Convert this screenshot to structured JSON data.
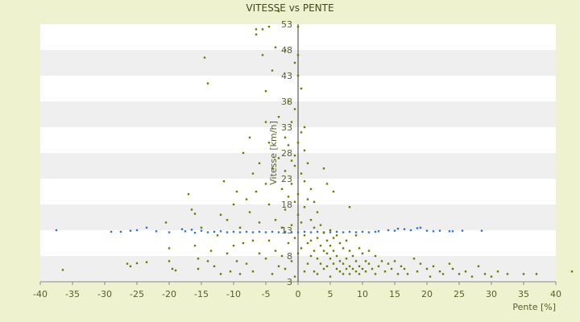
{
  "chart_data": {
    "type": "scatter",
    "title": "VITESSE vs PENTE",
    "xlabel": "Pente [%]",
    "ylabel": "Vitesse [km/h]",
    "xlim": [
      -40,
      40
    ],
    "ylim": [
      3,
      53
    ],
    "x_ticks": [
      "-40",
      "-35",
      "-30",
      "-25",
      "-20",
      "-15",
      "-10",
      "-5",
      "0",
      "5",
      "10",
      "15",
      "20",
      "25",
      "30",
      "35",
      "40"
    ],
    "y_ticks": [
      "3",
      "8",
      "13",
      "18",
      "23",
      "28",
      "33",
      "38",
      "43",
      "48",
      "53"
    ],
    "legend": "none",
    "grid": "horizontal bands",
    "colors": {
      "measured": "#6b7a00",
      "mean": "#2e75d6"
    },
    "series": [
      {
        "values": [
          [
            -37.5,
            13.0
          ],
          [
            -29.0,
            12.7
          ],
          [
            -27.5,
            12.7
          ],
          [
            -26.0,
            12.9
          ],
          [
            -25.0,
            13.0
          ],
          [
            -23.5,
            13.5
          ],
          [
            -22.0,
            12.8
          ],
          [
            -20.0,
            12.6
          ],
          [
            -18.0,
            13.2
          ],
          [
            -17.5,
            12.8
          ],
          [
            -16.5,
            13.1
          ],
          [
            -16.0,
            12.5
          ],
          [
            -15.0,
            12.9
          ],
          [
            -14.0,
            12.6
          ],
          [
            -13.0,
            12.7
          ],
          [
            -12.0,
            12.8
          ],
          [
            -11.0,
            12.6
          ],
          [
            -10.0,
            12.7
          ],
          [
            -9.0,
            12.6
          ],
          [
            -8.0,
            12.7
          ],
          [
            -7.0,
            12.6
          ],
          [
            -6.0,
            12.7
          ],
          [
            -5.0,
            12.6
          ],
          [
            -4.0,
            12.7
          ],
          [
            -3.0,
            12.6
          ],
          [
            -2.0,
            12.7
          ],
          [
            -1.0,
            12.6
          ],
          [
            0.0,
            12.6
          ],
          [
            1.0,
            12.7
          ],
          [
            2.0,
            12.6
          ],
          [
            3.0,
            12.7
          ],
          [
            4.0,
            12.6
          ],
          [
            5.0,
            12.6
          ],
          [
            6.0,
            12.7
          ],
          [
            7.0,
            12.6
          ],
          [
            8.0,
            12.7
          ],
          [
            9.0,
            12.6
          ],
          [
            10.0,
            12.7
          ],
          [
            11.0,
            12.6
          ],
          [
            12.0,
            12.7
          ],
          [
            12.5,
            12.8
          ],
          [
            14.0,
            13.0
          ],
          [
            15.0,
            12.9
          ],
          [
            15.5,
            13.3
          ],
          [
            16.5,
            13.2
          ],
          [
            17.5,
            13.0
          ],
          [
            18.5,
            13.4
          ],
          [
            19.0,
            13.5
          ],
          [
            20.0,
            12.9
          ],
          [
            21.0,
            12.8
          ],
          [
            22.0,
            12.9
          ],
          [
            23.5,
            12.8
          ],
          [
            24.0,
            12.8
          ],
          [
            25.5,
            12.9
          ],
          [
            28.5,
            12.9
          ]
        ]
      },
      {
        "values": [
          [
            -36.5,
            5.3
          ],
          [
            -26.5,
            6.5
          ],
          [
            -26.0,
            6.0
          ],
          [
            -25.0,
            6.6
          ],
          [
            -23.5,
            6.8
          ],
          [
            -20.5,
            14.5
          ],
          [
            -20.0,
            9.5
          ],
          [
            -20.0,
            7.0
          ],
          [
            -19.5,
            5.5
          ],
          [
            -19.0,
            5.2
          ],
          [
            -17.0,
            20.0
          ],
          [
            -16.5,
            17.0
          ],
          [
            -16.0,
            16.2
          ],
          [
            -16.0,
            10.0
          ],
          [
            -15.5,
            7.5
          ],
          [
            -15.5,
            5.5
          ],
          [
            -15.0,
            13.5
          ],
          [
            -14.5,
            46.5
          ],
          [
            -14.0,
            41.5
          ],
          [
            -14.0,
            7.0
          ],
          [
            -13.5,
            9.0
          ],
          [
            -13.0,
            6.0
          ],
          [
            -12.5,
            12.0
          ],
          [
            -12.0,
            4.5
          ],
          [
            -12.0,
            16.0
          ],
          [
            -11.5,
            22.5
          ],
          [
            -11.0,
            15.0
          ],
          [
            -11.0,
            8.5
          ],
          [
            -10.5,
            5.0
          ],
          [
            -10.0,
            10.0
          ],
          [
            -10.0,
            18.0
          ],
          [
            -9.5,
            20.5
          ],
          [
            -9.5,
            7.0
          ],
          [
            -9.0,
            13.5
          ],
          [
            -9.0,
            4.5
          ],
          [
            -8.5,
            28.0
          ],
          [
            -8.5,
            10.5
          ],
          [
            -8.0,
            19.0
          ],
          [
            -8.0,
            6.5
          ],
          [
            -7.5,
            16.5
          ],
          [
            -7.5,
            31.0
          ],
          [
            -7.0,
            24.0
          ],
          [
            -7.0,
            11.0
          ],
          [
            -7.0,
            5.0
          ],
          [
            -6.5,
            51.0
          ],
          [
            -6.5,
            52.0
          ],
          [
            -6.5,
            20.5
          ],
          [
            -6.0,
            8.5
          ],
          [
            -6.0,
            14.5
          ],
          [
            -6.0,
            26.0
          ],
          [
            -5.5,
            52.0
          ],
          [
            -5.5,
            47.0
          ],
          [
            -5.0,
            40.0
          ],
          [
            -5.0,
            34.0
          ],
          [
            -5.0,
            22.0
          ],
          [
            -5.0,
            7.5
          ],
          [
            -4.5,
            52.5
          ],
          [
            -4.5,
            30.0
          ],
          [
            -4.5,
            18.0
          ],
          [
            -4.5,
            11.0
          ],
          [
            -4.0,
            44.0
          ],
          [
            -4.0,
            4.5
          ],
          [
            -4.0,
            25.0
          ],
          [
            -3.5,
            48.5
          ],
          [
            -3.5,
            15.0
          ],
          [
            -3.5,
            9.0
          ],
          [
            -3.0,
            55.5
          ],
          [
            -3.0,
            35.0
          ],
          [
            -3.0,
            27.0
          ],
          [
            -3.0,
            6.0
          ],
          [
            -2.5,
            21.0
          ],
          [
            -2.5,
            13.5
          ],
          [
            -2.5,
            8.0
          ],
          [
            -2.0,
            48.0
          ],
          [
            -2.0,
            31.0
          ],
          [
            -2.0,
            24.5
          ],
          [
            -2.0,
            17.0
          ],
          [
            -2.0,
            5.5
          ],
          [
            -1.5,
            38.0
          ],
          [
            -1.5,
            29.5
          ],
          [
            -1.5,
            19.5
          ],
          [
            -1.5,
            10.5
          ],
          [
            -1.0,
            34.0
          ],
          [
            -1.0,
            26.5
          ],
          [
            -1.0,
            22.0
          ],
          [
            -1.0,
            14.0
          ],
          [
            -1.0,
            7.0
          ],
          [
            -0.5,
            45.5
          ],
          [
            -0.5,
            36.5
          ],
          [
            -0.5,
            27.5
          ],
          [
            -0.5,
            25.5
          ],
          [
            -0.5,
            18.5
          ],
          [
            -0.5,
            11.5
          ],
          [
            -0.5,
            4.0
          ],
          [
            0.0,
            52.5
          ],
          [
            0.0,
            47.0
          ],
          [
            0.0,
            43.0
          ],
          [
            0.0,
            30.0
          ],
          [
            0.0,
            20.0
          ],
          [
            0.0,
            16.0
          ],
          [
            0.0,
            8.5
          ],
          [
            0.5,
            40.5
          ],
          [
            0.5,
            32.0
          ],
          [
            0.5,
            24.0
          ],
          [
            0.5,
            14.5
          ],
          [
            0.5,
            9.5
          ],
          [
            1.0,
            33.0
          ],
          [
            1.0,
            28.5
          ],
          [
            1.0,
            22.5
          ],
          [
            1.0,
            17.5
          ],
          [
            1.0,
            12.0
          ],
          [
            1.0,
            5.0
          ],
          [
            1.5,
            26.0
          ],
          [
            1.5,
            19.0
          ],
          [
            1.5,
            10.5
          ],
          [
            1.5,
            6.5
          ],
          [
            2.0,
            21.0
          ],
          [
            2.0,
            15.0
          ],
          [
            2.0,
            11.0
          ],
          [
            2.0,
            8.0
          ],
          [
            2.5,
            18.5
          ],
          [
            2.5,
            13.5
          ],
          [
            2.5,
            9.0
          ],
          [
            2.5,
            5.0
          ],
          [
            3.0,
            16.5
          ],
          [
            3.0,
            11.5
          ],
          [
            3.0,
            7.5
          ],
          [
            3.0,
            4.5
          ],
          [
            3.5,
            14.0
          ],
          [
            3.5,
            10.0
          ],
          [
            3.5,
            6.5
          ],
          [
            4.0,
            25.0
          ],
          [
            4.0,
            12.5
          ],
          [
            4.0,
            9.0
          ],
          [
            4.0,
            5.5
          ],
          [
            4.5,
            22.0
          ],
          [
            4.5,
            11.0
          ],
          [
            4.5,
            8.5
          ],
          [
            4.5,
            6.0
          ],
          [
            5.0,
            13.0
          ],
          [
            5.0,
            10.0
          ],
          [
            5.0,
            7.5
          ],
          [
            5.0,
            4.0
          ],
          [
            5.5,
            20.5
          ],
          [
            5.5,
            11.5
          ],
          [
            5.5,
            9.0
          ],
          [
            5.5,
            6.5
          ],
          [
            6.0,
            12.0
          ],
          [
            6.0,
            8.0
          ],
          [
            6.0,
            5.5
          ],
          [
            6.5,
            10.5
          ],
          [
            6.5,
            7.0
          ],
          [
            6.5,
            5.0
          ],
          [
            7.0,
            9.5
          ],
          [
            7.0,
            6.5
          ],
          [
            7.0,
            4.5
          ],
          [
            7.5,
            11.0
          ],
          [
            7.5,
            7.5
          ],
          [
            7.5,
            5.5
          ],
          [
            8.0,
            17.5
          ],
          [
            8.0,
            9.0
          ],
          [
            8.0,
            6.0
          ],
          [
            8.0,
            4.5
          ],
          [
            8.5,
            8.0
          ],
          [
            8.5,
            5.5
          ],
          [
            9.0,
            12.0
          ],
          [
            9.0,
            7.0
          ],
          [
            9.0,
            5.0
          ],
          [
            9.5,
            9.5
          ],
          [
            9.5,
            6.0
          ],
          [
            9.5,
            4.5
          ],
          [
            10.0,
            8.5
          ],
          [
            10.0,
            5.5
          ],
          [
            10.5,
            7.0
          ],
          [
            10.5,
            5.0
          ],
          [
            11.0,
            9.0
          ],
          [
            11.0,
            6.5
          ],
          [
            11.5,
            5.5
          ],
          [
            12.0,
            8.0
          ],
          [
            12.0,
            4.5
          ],
          [
            12.5,
            6.0
          ],
          [
            13.0,
            7.0
          ],
          [
            13.5,
            5.0
          ],
          [
            14.0,
            6.5
          ],
          [
            14.5,
            5.5
          ],
          [
            15.0,
            7.0
          ],
          [
            15.5,
            4.5
          ],
          [
            16.0,
            6.0
          ],
          [
            16.5,
            5.5
          ],
          [
            17.0,
            4.5
          ],
          [
            18.0,
            7.5
          ],
          [
            18.5,
            5.0
          ],
          [
            19.0,
            6.5
          ],
          [
            20.0,
            5.5
          ],
          [
            20.5,
            4.0
          ],
          [
            21.0,
            6.0
          ],
          [
            22.0,
            5.0
          ],
          [
            22.5,
            4.5
          ],
          [
            23.5,
            6.5
          ],
          [
            24.0,
            5.5
          ],
          [
            25.0,
            4.5
          ],
          [
            26.0,
            5.0
          ],
          [
            27.0,
            4.0
          ],
          [
            28.0,
            6.0
          ],
          [
            29.0,
            4.5
          ],
          [
            30.0,
            4.0
          ],
          [
            31.0,
            5.0
          ],
          [
            32.5,
            4.5
          ],
          [
            35.0,
            4.5
          ],
          [
            37.0,
            4.5
          ],
          [
            42.5,
            5.0
          ]
        ]
      }
    ]
  }
}
